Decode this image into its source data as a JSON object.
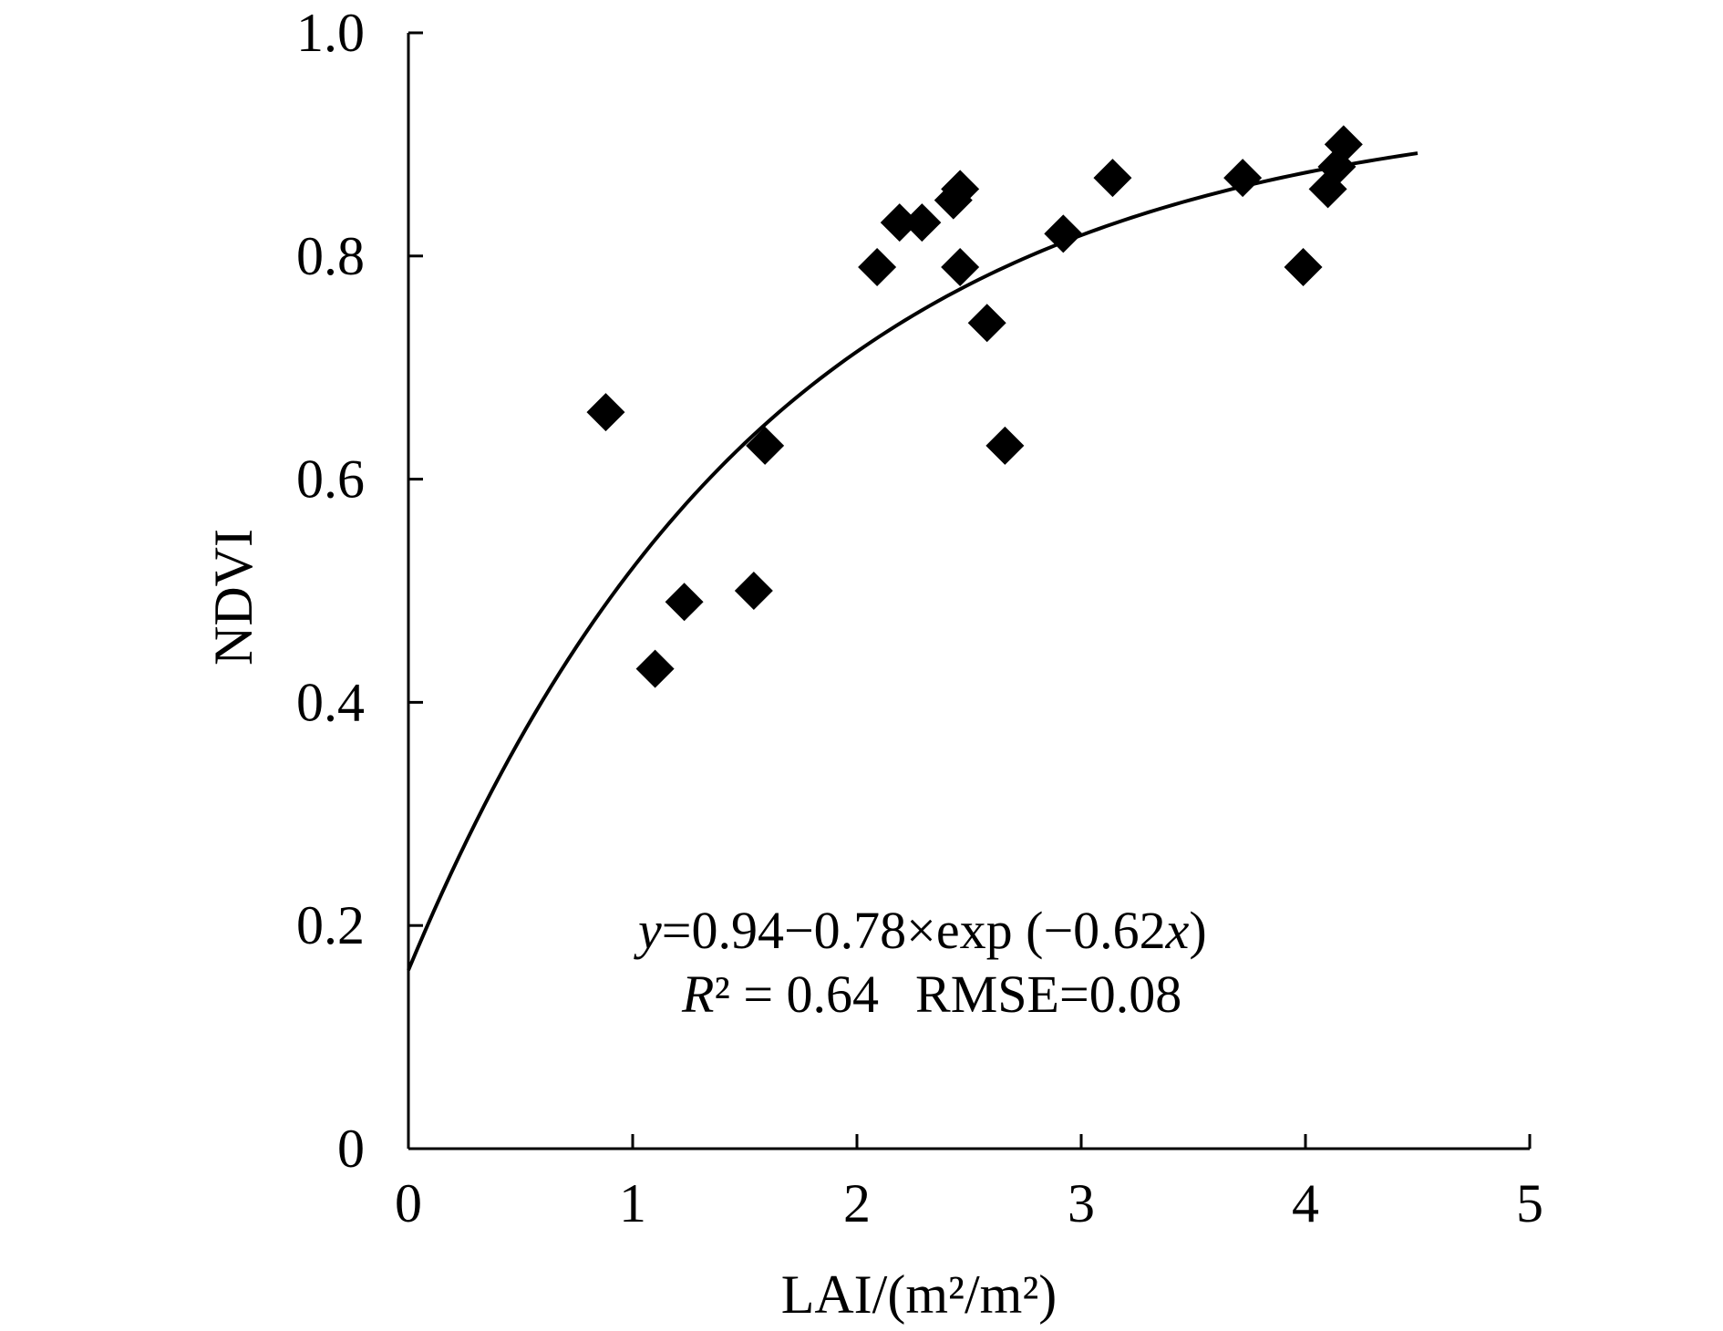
{
  "chart_data": {
    "type": "scatter",
    "xlabel": "LAI/(m²/m²)",
    "ylabel": "NDVI",
    "xlim": [
      0,
      5
    ],
    "ylim": [
      0,
      1.0
    ],
    "x_ticks": [
      "0",
      "1",
      "2",
      "3",
      "4",
      "5"
    ],
    "y_ticks": [
      "0",
      "0.2",
      "0.4",
      "0.6",
      "0.8",
      "1.0"
    ],
    "grid": false,
    "marker": "diamond",
    "points": [
      {
        "x": 0.88,
        "y": 0.66
      },
      {
        "x": 1.1,
        "y": 0.43
      },
      {
        "x": 1.23,
        "y": 0.49
      },
      {
        "x": 1.54,
        "y": 0.5
      },
      {
        "x": 1.59,
        "y": 0.63
      },
      {
        "x": 2.09,
        "y": 0.79
      },
      {
        "x": 2.19,
        "y": 0.83
      },
      {
        "x": 2.29,
        "y": 0.83
      },
      {
        "x": 2.43,
        "y": 0.85
      },
      {
        "x": 2.46,
        "y": 0.86
      },
      {
        "x": 2.46,
        "y": 0.79
      },
      {
        "x": 2.58,
        "y": 0.74
      },
      {
        "x": 2.66,
        "y": 0.63
      },
      {
        "x": 2.92,
        "y": 0.82
      },
      {
        "x": 3.14,
        "y": 0.87
      },
      {
        "x": 3.72,
        "y": 0.87
      },
      {
        "x": 3.99,
        "y": 0.79
      },
      {
        "x": 4.1,
        "y": 0.86
      },
      {
        "x": 4.14,
        "y": 0.88
      },
      {
        "x": 4.17,
        "y": 0.9
      }
    ],
    "fit": {
      "a": 0.94,
      "b": 0.78,
      "k": 0.62,
      "x_range": [
        0,
        4.5
      ]
    },
    "equation": {
      "y_var": "y",
      "rhs": "=0.94−0.78×exp (−0.62",
      "x_var": "x",
      "close": ")"
    },
    "stats": {
      "r_var": "R",
      "r_rest": "² = 0.64",
      "rmse": "RMSE=0.08"
    }
  }
}
